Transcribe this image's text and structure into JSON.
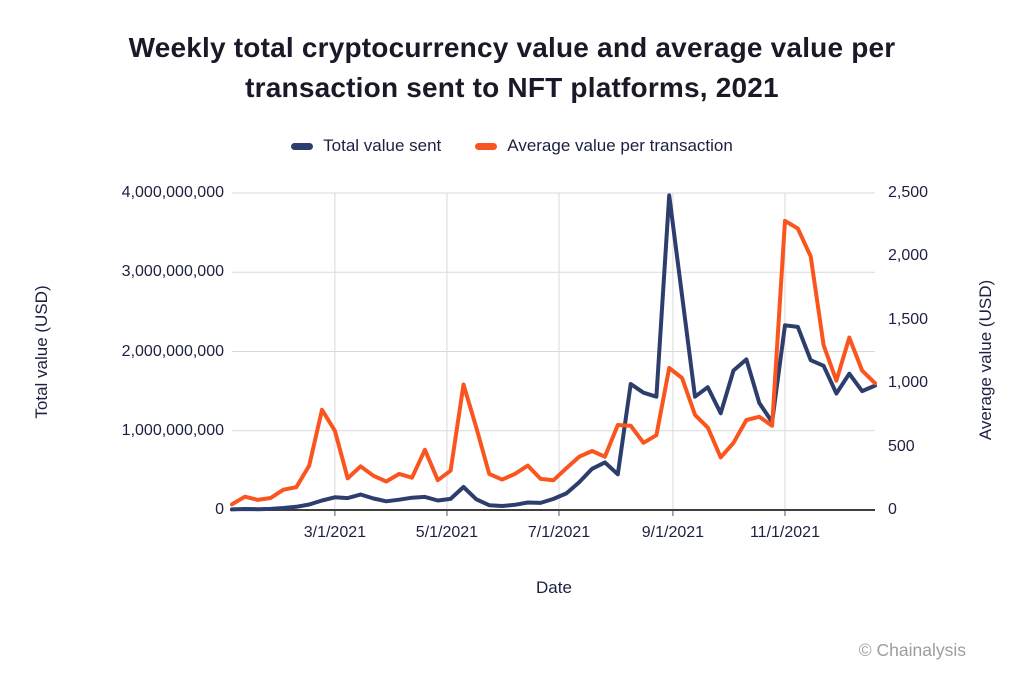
{
  "title": {
    "line1": "Weekly total cryptocurrency value and average value per",
    "line2": "transaction sent to NFT platforms, 2021"
  },
  "legend": {
    "items": [
      {
        "label": "Total value sent",
        "color": "#2d3e6d"
      },
      {
        "label": "Average value per transaction",
        "color": "#fa551e"
      }
    ]
  },
  "footer": {
    "credit": "© Chainalysis"
  },
  "colors": {
    "grid": "#d9d9d9",
    "axis_line": "#3f3f3f",
    "tick_mark": "#555555",
    "total_series": "#2d3e6d",
    "average_series": "#fa551e"
  },
  "chart_data": {
    "type": "line",
    "title": "Weekly total cryptocurrency value and average value per transaction sent to NFT platforms, 2021",
    "xlabel": "Date",
    "legend_position": "top",
    "grid": {
      "horizontal": "left-axis ticks",
      "vertical": "x ticks"
    },
    "x": [
      "1/4/2021",
      "1/11/2021",
      "1/18/2021",
      "1/25/2021",
      "2/1/2021",
      "2/8/2021",
      "2/15/2021",
      "2/22/2021",
      "3/1/2021",
      "3/8/2021",
      "3/15/2021",
      "3/22/2021",
      "3/29/2021",
      "4/5/2021",
      "4/12/2021",
      "4/19/2021",
      "4/26/2021",
      "5/3/2021",
      "5/10/2021",
      "5/17/2021",
      "5/24/2021",
      "5/31/2021",
      "6/7/2021",
      "6/14/2021",
      "6/21/2021",
      "6/28/2021",
      "7/5/2021",
      "7/12/2021",
      "7/19/2021",
      "7/26/2021",
      "8/2/2021",
      "8/9/2021",
      "8/16/2021",
      "8/23/2021",
      "8/30/2021",
      "9/6/2021",
      "9/13/2021",
      "9/20/2021",
      "9/27/2021",
      "10/4/2021",
      "10/11/2021",
      "10/18/2021",
      "10/25/2021",
      "11/1/2021",
      "11/8/2021",
      "11/15/2021",
      "11/22/2021",
      "11/29/2021",
      "12/6/2021",
      "12/13/2021",
      "12/20/2021"
    ],
    "series": [
      {
        "name": "Total value sent",
        "axis": "left",
        "color": "#2d3e6d",
        "values": [
          8000000,
          12000000,
          10000000,
          14000000,
          25000000,
          40000000,
          70000000,
          120000000,
          160000000,
          150000000,
          195000000,
          145000000,
          110000000,
          130000000,
          155000000,
          165000000,
          120000000,
          140000000,
          290000000,
          135000000,
          60000000,
          50000000,
          65000000,
          95000000,
          90000000,
          140000000,
          210000000,
          350000000,
          520000000,
          600000000,
          450000000,
          1590000000,
          1480000000,
          1430000000,
          3970000000,
          2700000000,
          1430000000,
          1550000000,
          1220000000,
          1760000000,
          1900000000,
          1350000000,
          1110000000,
          2330000000,
          2310000000,
          1890000000,
          1820000000,
          1470000000,
          1720000000,
          1500000000,
          1570000000
        ]
      },
      {
        "name": "Average value per transaction",
        "axis": "right",
        "color": "#fa551e",
        "values": [
          45,
          105,
          80,
          95,
          160,
          180,
          350,
          790,
          625,
          250,
          345,
          270,
          225,
          285,
          255,
          475,
          235,
          310,
          990,
          650,
          285,
          240,
          285,
          350,
          245,
          235,
          330,
          420,
          465,
          420,
          670,
          665,
          530,
          590,
          1120,
          1040,
          750,
          650,
          415,
          530,
          710,
          735,
          665,
          2280,
          2220,
          2000,
          1300,
          1020,
          1360,
          1100,
          1000
        ]
      }
    ],
    "left_axis": {
      "title": "Total value (USD)",
      "min": 0,
      "max": 4000000000,
      "ticks": [
        {
          "value": 0,
          "label": "0"
        },
        {
          "value": 1000000000,
          "label": "1,000,000,000"
        },
        {
          "value": 2000000000,
          "label": "2,000,000,000"
        },
        {
          "value": 3000000000,
          "label": "3,000,000,000"
        },
        {
          "value": 4000000000,
          "label": "4,000,000,000"
        }
      ]
    },
    "right_axis": {
      "title": "Average value (USD)",
      "min": 0,
      "max": 2500,
      "ticks": [
        {
          "value": 0,
          "label": "0"
        },
        {
          "value": 500,
          "label": "500"
        },
        {
          "value": 1000,
          "label": "1,000"
        },
        {
          "value": 1500,
          "label": "1,500"
        },
        {
          "value": 2000,
          "label": "2,000"
        },
        {
          "value": 2500,
          "label": "2,500"
        }
      ]
    },
    "x_axis": {
      "title": "Date",
      "ticks": [
        "3/1/2021",
        "5/1/2021",
        "7/1/2021",
        "9/1/2021",
        "11/1/2021"
      ]
    }
  }
}
